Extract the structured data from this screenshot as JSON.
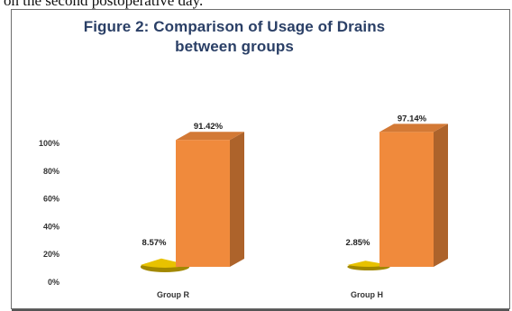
{
  "page": {
    "caption_fragment": "on the second postoperative day."
  },
  "chart_data": {
    "type": "bar",
    "title": "Figure 2: Comparison of Usage of Drains between groups",
    "title_lines": [
      "Figure 2: Comparison of Usage of Drains",
      "between groups"
    ],
    "categories": [
      "Group R",
      "Group H"
    ],
    "series": [
      {
        "values": [
          8.57,
          2.85
        ],
        "labels": [
          "8.57%",
          "2.85%"
        ],
        "color": "#e8c200",
        "shape": "flat-disc"
      },
      {
        "values": [
          91.42,
          97.14
        ],
        "labels": [
          "91.42%",
          "97.14%"
        ],
        "color": "#f08a3c",
        "shape": "3d-box"
      }
    ],
    "yticks": [
      "0%",
      "20%",
      "40%",
      "60%",
      "80%",
      "100%"
    ],
    "ylim": [
      0,
      100
    ],
    "xlabel": "",
    "ylabel": "",
    "grid": false,
    "legend": "none"
  }
}
